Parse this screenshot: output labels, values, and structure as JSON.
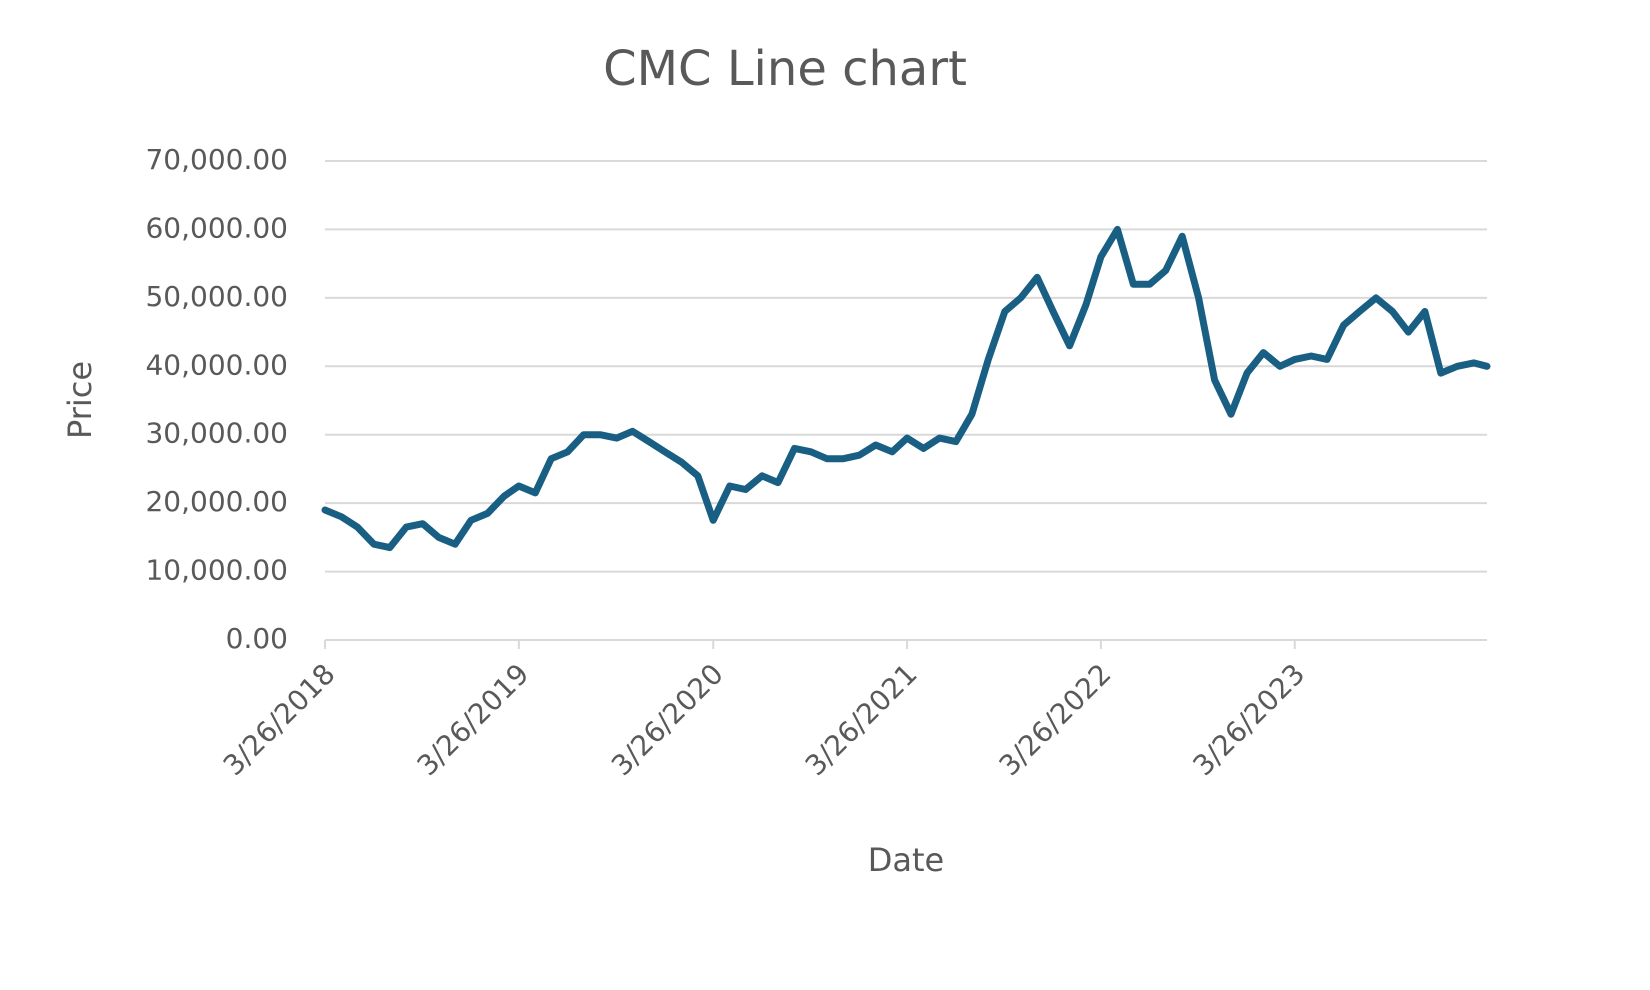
{
  "chart_data": {
    "type": "line",
    "title": "CMC Line chart",
    "x_label": "Date",
    "y_label": "Price",
    "x": [
      "2018-03-26",
      "2018-04-26",
      "2018-05-26",
      "2018-06-26",
      "2018-07-26",
      "2018-08-26",
      "2018-09-26",
      "2018-10-26",
      "2018-11-26",
      "2018-12-26",
      "2019-01-26",
      "2019-02-26",
      "2019-03-26",
      "2019-04-26",
      "2019-05-26",
      "2019-06-26",
      "2019-07-26",
      "2019-08-26",
      "2019-09-26",
      "2019-10-26",
      "2019-11-26",
      "2019-12-26",
      "2020-01-26",
      "2020-02-26",
      "2020-03-26",
      "2020-04-26",
      "2020-05-26",
      "2020-06-26",
      "2020-07-26",
      "2020-08-26",
      "2020-09-26",
      "2020-10-26",
      "2020-11-26",
      "2020-12-26",
      "2021-01-26",
      "2021-02-26",
      "2021-03-26",
      "2021-04-26",
      "2021-05-26",
      "2021-06-26",
      "2021-07-26",
      "2021-08-26",
      "2021-09-26",
      "2021-10-26",
      "2021-11-26",
      "2021-12-26",
      "2022-01-26",
      "2022-02-26",
      "2022-03-26",
      "2022-04-26",
      "2022-05-26",
      "2022-06-26",
      "2022-07-26",
      "2022-08-26",
      "2022-09-26",
      "2022-10-26",
      "2022-11-26",
      "2022-12-26",
      "2023-01-26",
      "2023-02-26",
      "2023-03-26",
      "2023-04-26",
      "2023-05-26",
      "2023-06-26",
      "2023-07-26",
      "2023-08-26",
      "2023-09-26",
      "2023-10-26",
      "2023-11-26",
      "2023-12-26",
      "2024-01-26",
      "2024-02-26",
      "2024-03-22"
    ],
    "values": [
      19000,
      18000,
      16500,
      14000,
      13500,
      16500,
      17000,
      15000,
      14000,
      17500,
      18500,
      21000,
      22500,
      21500,
      26500,
      27500,
      30000,
      30000,
      29500,
      30500,
      29000,
      27500,
      26000,
      24000,
      17500,
      22500,
      22000,
      24000,
      23000,
      28000,
      27500,
      26500,
      26500,
      27000,
      28500,
      27500,
      29500,
      28000,
      29500,
      29000,
      33000,
      41000,
      48000,
      50000,
      53000,
      48000,
      43000,
      49000,
      56000,
      60000,
      52000,
      52000,
      54000,
      59000,
      50000,
      38000,
      33000,
      39000,
      42000,
      40000,
      41000,
      41500,
      41000,
      46000,
      48000,
      50000,
      48000,
      45000,
      48000,
      39000,
      40000,
      40500,
      40000
    ],
    "color": "#195e83",
    "xlim": [
      "2018-03-26",
      "2024-03-22"
    ],
    "xticks": [
      {
        "value": "2018-03-26",
        "label": "3/26/2018"
      },
      {
        "value": "2019-03-26",
        "label": "3/26/2019"
      },
      {
        "value": "2020-03-26",
        "label": "3/26/2020"
      },
      {
        "value": "2021-03-26",
        "label": "3/26/2021"
      },
      {
        "value": "2022-03-26",
        "label": "3/26/2022"
      },
      {
        "value": "2023-03-26",
        "label": "3/26/2023"
      }
    ],
    "ylim": [
      0,
      70000
    ],
    "yticks": [
      {
        "value": 0,
        "label": "0.00"
      },
      {
        "value": 10000,
        "label": "10,000.00"
      },
      {
        "value": 20000,
        "label": "20,000.00"
      },
      {
        "value": 30000,
        "label": "30,000.00"
      },
      {
        "value": 40000,
        "label": "40,000.00"
      },
      {
        "value": 50000,
        "label": "50,000.00"
      },
      {
        "value": 60000,
        "label": "60,000.00"
      },
      {
        "value": 70000,
        "label": "70,000.00"
      }
    ],
    "grid": true
  }
}
